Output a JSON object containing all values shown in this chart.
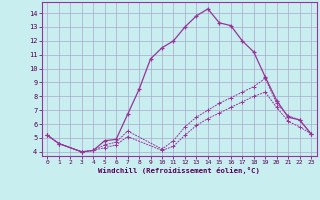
{
  "xlabel": "Windchill (Refroidissement éolien,°C)",
  "bg_color": "#c8eef0",
  "grid_color": "#aaaacc",
  "line_color": "#993399",
  "xlim": [
    -0.5,
    23.5
  ],
  "ylim": [
    3.7,
    14.8
  ],
  "yticks": [
    4,
    5,
    6,
    7,
    8,
    9,
    10,
    11,
    12,
    13,
    14
  ],
  "xticks": [
    0,
    1,
    2,
    3,
    4,
    5,
    6,
    7,
    8,
    9,
    10,
    11,
    12,
    13,
    14,
    15,
    16,
    17,
    18,
    19,
    20,
    21,
    22,
    23
  ],
  "line1_x": [
    0,
    1,
    3,
    4,
    5,
    6,
    7,
    8,
    9,
    10,
    11,
    12,
    13,
    14,
    15,
    16,
    17,
    18,
    19,
    20,
    21,
    22,
    23
  ],
  "line1_y": [
    5.2,
    4.6,
    4.0,
    4.1,
    4.8,
    4.9,
    6.7,
    8.5,
    10.7,
    11.5,
    12.0,
    13.0,
    13.8,
    14.3,
    13.3,
    13.1,
    12.0,
    11.2,
    9.4,
    7.7,
    6.5,
    6.3,
    5.3
  ],
  "line2_x": [
    0,
    1,
    3,
    4,
    5,
    6,
    7,
    10,
    11,
    12,
    13,
    14,
    15,
    16,
    17,
    18,
    19,
    20,
    21,
    22,
    23
  ],
  "line2_y": [
    5.2,
    4.6,
    4.0,
    4.1,
    4.5,
    4.7,
    5.5,
    4.2,
    4.8,
    5.8,
    6.5,
    7.0,
    7.5,
    7.9,
    8.3,
    8.7,
    9.3,
    7.5,
    6.6,
    6.3,
    5.3
  ],
  "line3_x": [
    0,
    1,
    3,
    4,
    5,
    6,
    7,
    10,
    11,
    12,
    13,
    14,
    15,
    16,
    17,
    18,
    19,
    20,
    21,
    22,
    23
  ],
  "line3_y": [
    5.2,
    4.6,
    4.0,
    4.1,
    4.3,
    4.5,
    5.1,
    4.1,
    4.4,
    5.2,
    5.9,
    6.4,
    6.8,
    7.2,
    7.6,
    8.0,
    8.3,
    7.2,
    6.2,
    5.8,
    5.3
  ]
}
